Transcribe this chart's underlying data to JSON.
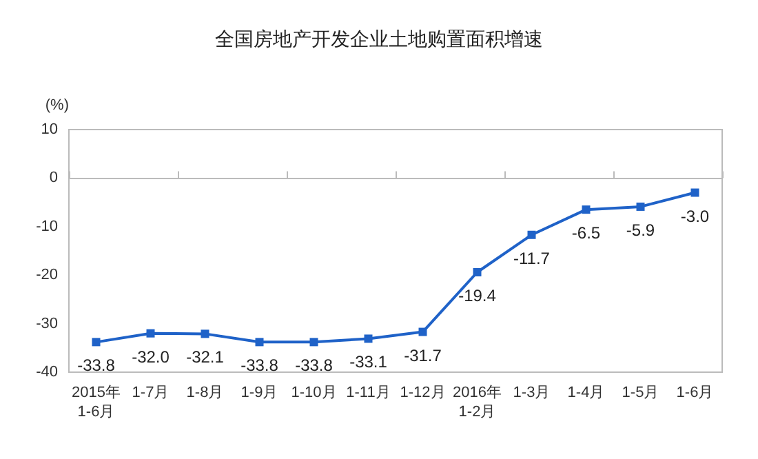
{
  "chart_data": {
    "type": "line",
    "title": "全国房地产开发企业土地购置面积增速",
    "ylabel": "(%)",
    "categories": [
      "2015年\n1-6月",
      "1-7月",
      "1-8月",
      "1-9月",
      "1-10月",
      "1-11月",
      "1-12月",
      "2016年\n1-2月",
      "1-3月",
      "1-4月",
      "1-5月",
      "1-6月"
    ],
    "series": [
      {
        "color": "#1f62c8",
        "values": [
          -33.8,
          -32.0,
          -32.1,
          -33.8,
          -33.8,
          -33.1,
          -31.7,
          -19.4,
          -11.7,
          -6.5,
          -5.9,
          -3.0
        ],
        "value_labels": [
          "-33.8",
          "-32.0",
          "-32.1",
          "-33.8",
          "-33.8",
          "-33.1",
          "-31.7",
          "-19.4",
          "-11.7",
          "-6.5",
          "-5.9",
          "-3.0"
        ]
      }
    ],
    "ylim": [
      -40,
      10
    ],
    "yticks": [
      -40,
      -30,
      -20,
      -10,
      0,
      10
    ],
    "marker": "square",
    "line_style": "solid"
  }
}
